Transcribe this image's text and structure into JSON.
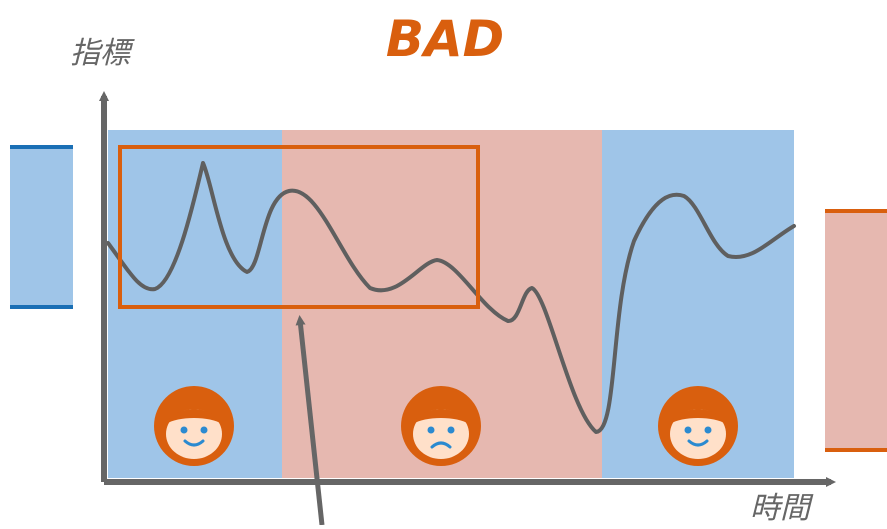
{
  "title": "BAD",
  "y_axis_label": "指標",
  "x_axis_label": "時間",
  "colors": {
    "good_zone": "#9fc5e8",
    "bad_zone": "#e6b8b0",
    "accent_orange": "#d95f0e",
    "axis_gray": "#666666",
    "curve_gray": "#5f5f5f",
    "left_bar_border": "#1a6fb5",
    "face_skin": "#ffe0c9",
    "face_features": "#2b8ad0"
  },
  "zones": [
    {
      "state": "good",
      "face": "happy"
    },
    {
      "state": "bad",
      "face": "sad"
    },
    {
      "state": "good",
      "face": "happy"
    }
  ],
  "icons": {
    "happy_face": "happy-face-icon",
    "sad_face": "sad-face-icon"
  }
}
